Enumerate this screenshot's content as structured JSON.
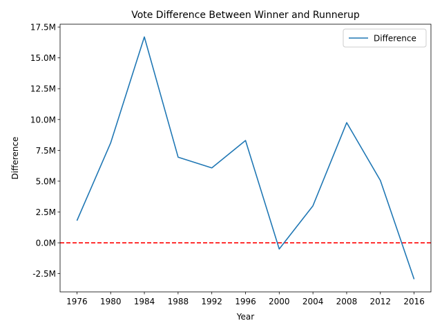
{
  "chart_data": {
    "type": "line",
    "title": "Vote Difference Between Winner and Runnerup",
    "xlabel": "Year",
    "ylabel": "Difference",
    "x": [
      1976,
      1980,
      1984,
      1988,
      1992,
      1996,
      2000,
      2004,
      2008,
      2012,
      2016
    ],
    "series": [
      {
        "name": "Difference",
        "color": "#1f77b4",
        "values": [
          1800000,
          8100000,
          16700000,
          6950000,
          6080000,
          8300000,
          -500000,
          3000000,
          9750000,
          5050000,
          -2950000
        ]
      }
    ],
    "reference_line": {
      "y": 0,
      "color": "#ff0000",
      "style": "dashed"
    },
    "xticks": [
      "1976",
      "1980",
      "1984",
      "1988",
      "1992",
      "1996",
      "2000",
      "2004",
      "2008",
      "2012",
      "2016"
    ],
    "yticks": [
      {
        "value": -2500000,
        "label": "-2.5M"
      },
      {
        "value": 0,
        "label": "0.0M"
      },
      {
        "value": 2500000,
        "label": "2.5M"
      },
      {
        "value": 5000000,
        "label": "5.0M"
      },
      {
        "value": 7500000,
        "label": "7.5M"
      },
      {
        "value": 10000000,
        "label": "10.0M"
      },
      {
        "value": 12500000,
        "label": "12.5M"
      },
      {
        "value": 15000000,
        "label": "15.0M"
      },
      {
        "value": 17500000,
        "label": "17.5M"
      }
    ],
    "xlim": [
      1973.8,
      1978.2
    ],
    "ylim": [
      -3980000,
      17730000
    ],
    "grid": false,
    "legend": "top-right"
  }
}
